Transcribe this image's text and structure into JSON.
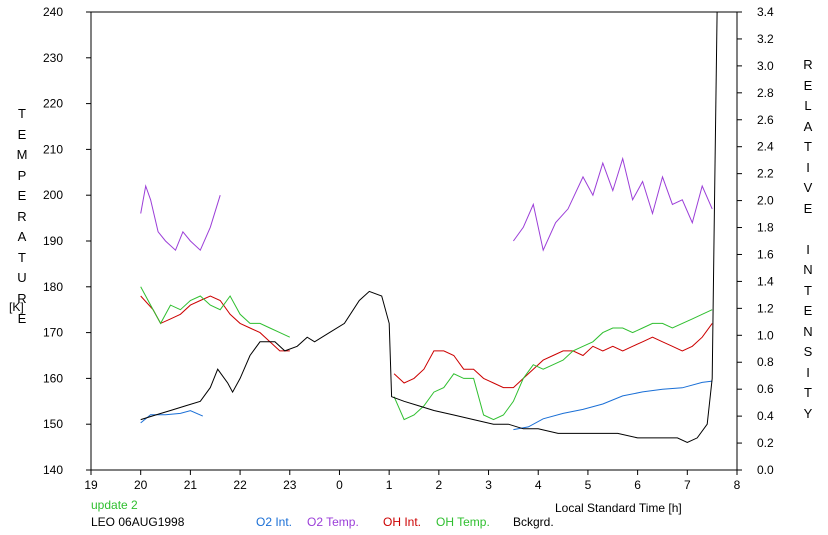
{
  "chart_data": {
    "type": "line",
    "station_label": "LEO 06AUG1998",
    "update_label": "update 2",
    "xlabel": "Local Standard Time [h]",
    "ylabel_left_letters": [
      "T",
      "E",
      "M",
      "P",
      "E",
      "R",
      "A",
      "T",
      "U",
      "R",
      "E"
    ],
    "ylabel_left_unit": "[K]",
    "ylabel_right_letters": [
      "R",
      "E",
      "L",
      "A",
      "T",
      "I",
      "V",
      "E",
      "",
      "I",
      "N",
      "T",
      "E",
      "N",
      "S",
      "I",
      "T",
      "Y"
    ],
    "x_ticks": [
      19,
      20,
      21,
      22,
      23,
      0,
      1,
      2,
      3,
      4,
      5,
      6,
      7,
      8
    ],
    "xlim": [
      19,
      32
    ],
    "ylim_left": [
      140,
      240
    ],
    "ylim_right": [
      0.0,
      3.4
    ],
    "y_ticks_left": [
      140,
      150,
      160,
      170,
      180,
      190,
      200,
      210,
      220,
      230,
      240
    ],
    "y_ticks_right": [
      "0.0",
      "0.2",
      "0.4",
      "0.6",
      "0.8",
      "1.0",
      "1.2",
      "1.4",
      "1.6",
      "1.8",
      "2.0",
      "2.2",
      "2.4",
      "2.6",
      "2.8",
      "3.0",
      "3.2",
      "3.4"
    ],
    "series": [
      {
        "name": "O2 Int.",
        "axis": "right",
        "color": "#1a6fd6",
        "segments": [
          [
            [
              20.0,
              0.35
            ],
            [
              20.2,
              0.41
            ],
            [
              20.5,
              0.41
            ],
            [
              20.8,
              0.42
            ],
            [
              21.0,
              0.44
            ],
            [
              21.25,
              0.4
            ]
          ],
          [
            [
              27.5,
              0.3
            ],
            [
              27.8,
              0.32
            ],
            [
              28.1,
              0.38
            ],
            [
              28.5,
              0.42
            ],
            [
              28.9,
              0.45
            ],
            [
              29.3,
              0.49
            ],
            [
              29.7,
              0.55
            ],
            [
              30.1,
              0.58
            ],
            [
              30.5,
              0.6
            ],
            [
              30.9,
              0.61
            ],
            [
              31.3,
              0.65
            ],
            [
              31.5,
              0.66
            ]
          ]
        ]
      },
      {
        "name": "O2 Temp.",
        "axis": "left",
        "color": "#9b3ed8",
        "segments": [
          [
            [
              20.0,
              196
            ],
            [
              20.1,
              202
            ],
            [
              20.2,
              199
            ],
            [
              20.35,
              192
            ],
            [
              20.5,
              190
            ],
            [
              20.7,
              188
            ],
            [
              20.85,
              192
            ],
            [
              21.0,
              190
            ],
            [
              21.2,
              188
            ],
            [
              21.4,
              193
            ],
            [
              21.6,
              200
            ]
          ],
          [
            [
              27.5,
              190
            ],
            [
              27.7,
              193
            ],
            [
              27.9,
              198
            ],
            [
              28.1,
              188
            ],
            [
              28.35,
              194
            ],
            [
              28.6,
              197
            ],
            [
              28.9,
              204
            ],
            [
              29.1,
              200
            ],
            [
              29.3,
              207
            ],
            [
              29.5,
              201
            ],
            [
              29.7,
              208
            ],
            [
              29.9,
              199
            ],
            [
              30.1,
              203
            ],
            [
              30.3,
              196
            ],
            [
              30.5,
              204
            ],
            [
              30.7,
              198
            ],
            [
              30.9,
              199
            ],
            [
              31.1,
              194
            ],
            [
              31.3,
              202
            ],
            [
              31.5,
              197
            ]
          ]
        ]
      },
      {
        "name": "OH Int.",
        "axis": "left",
        "color": "#cc0000",
        "segments": [
          [
            [
              20.0,
              178
            ],
            [
              20.25,
              175
            ],
            [
              20.4,
              172
            ],
            [
              20.6,
              173
            ],
            [
              20.8,
              174
            ],
            [
              21.0,
              176
            ],
            [
              21.2,
              177
            ],
            [
              21.4,
              178
            ],
            [
              21.6,
              177
            ],
            [
              21.8,
              174
            ],
            [
              22.0,
              172
            ],
            [
              22.2,
              171
            ],
            [
              22.4,
              170
            ],
            [
              22.6,
              168
            ],
            [
              22.8,
              166
            ],
            [
              23.0,
              166
            ]
          ],
          [
            [
              25.1,
              161
            ],
            [
              25.3,
              159
            ],
            [
              25.5,
              160
            ],
            [
              25.7,
              162
            ],
            [
              25.9,
              166
            ],
            [
              26.1,
              166
            ],
            [
              26.3,
              165
            ],
            [
              26.5,
              162
            ],
            [
              26.7,
              162
            ],
            [
              26.9,
              160
            ],
            [
              27.1,
              159
            ],
            [
              27.3,
              158
            ],
            [
              27.5,
              158
            ],
            [
              27.7,
              160
            ],
            [
              27.9,
              162
            ],
            [
              28.1,
              164
            ],
            [
              28.3,
              165
            ],
            [
              28.5,
              166
            ],
            [
              28.7,
              166
            ],
            [
              28.9,
              165
            ],
            [
              29.1,
              167
            ],
            [
              29.3,
              166
            ],
            [
              29.5,
              167
            ],
            [
              29.7,
              166
            ],
            [
              29.9,
              167
            ],
            [
              30.1,
              168
            ],
            [
              30.3,
              169
            ],
            [
              30.5,
              168
            ],
            [
              30.7,
              167
            ],
            [
              30.9,
              166
            ],
            [
              31.1,
              167
            ],
            [
              31.3,
              169
            ],
            [
              31.5,
              172
            ]
          ]
        ]
      },
      {
        "name": "OH Temp.",
        "axis": "left",
        "color": "#2fbf2f",
        "segments": [
          [
            [
              20.0,
              180
            ],
            [
              20.2,
              176
            ],
            [
              20.4,
              172
            ],
            [
              20.6,
              176
            ],
            [
              20.8,
              175
            ],
            [
              21.0,
              177
            ],
            [
              21.2,
              178
            ],
            [
              21.4,
              176
            ],
            [
              21.6,
              175
            ],
            [
              21.8,
              178
            ],
            [
              22.0,
              174
            ],
            [
              22.2,
              172
            ],
            [
              22.4,
              172
            ],
            [
              22.6,
              171
            ],
            [
              22.8,
              170
            ],
            [
              23.0,
              169
            ]
          ],
          [
            [
              25.1,
              156
            ],
            [
              25.3,
              151
            ],
            [
              25.5,
              152
            ],
            [
              25.7,
              154
            ],
            [
              25.9,
              157
            ],
            [
              26.1,
              158
            ],
            [
              26.3,
              161
            ],
            [
              26.5,
              160
            ],
            [
              26.7,
              160
            ],
            [
              26.9,
              152
            ],
            [
              27.1,
              151
            ],
            [
              27.3,
              152
            ],
            [
              27.5,
              155
            ],
            [
              27.7,
              160
            ],
            [
              27.9,
              163
            ],
            [
              28.1,
              162
            ],
            [
              28.3,
              163
            ],
            [
              28.5,
              164
            ],
            [
              28.7,
              166
            ],
            [
              28.9,
              167
            ],
            [
              29.1,
              168
            ],
            [
              29.3,
              170
            ],
            [
              29.5,
              171
            ],
            [
              29.7,
              171
            ],
            [
              29.9,
              170
            ],
            [
              30.1,
              171
            ],
            [
              30.3,
              172
            ],
            [
              30.5,
              172
            ],
            [
              30.7,
              171
            ],
            [
              30.9,
              172
            ],
            [
              31.1,
              173
            ],
            [
              31.3,
              174
            ],
            [
              31.5,
              175
            ]
          ]
        ]
      },
      {
        "name": "Bckgrd.",
        "axis": "left",
        "color": "#000000",
        "segments": [
          [
            [
              20.0,
              151
            ],
            [
              20.3,
              152
            ],
            [
              20.6,
              153
            ],
            [
              20.9,
              154
            ],
            [
              21.2,
              155
            ],
            [
              21.4,
              158
            ],
            [
              21.55,
              162
            ],
            [
              21.75,
              159
            ],
            [
              21.85,
              157
            ],
            [
              22.0,
              160
            ],
            [
              22.2,
              165
            ],
            [
              22.4,
              168
            ],
            [
              22.7,
              168
            ],
            [
              22.9,
              166
            ],
            [
              23.15,
              167
            ],
            [
              23.35,
              169
            ],
            [
              23.5,
              168
            ],
            [
              23.8,
              170
            ],
            [
              24.1,
              172
            ],
            [
              24.4,
              177
            ],
            [
              24.6,
              179
            ],
            [
              24.85,
              178
            ],
            [
              25.0,
              172
            ],
            [
              25.05,
              156
            ],
            [
              25.3,
              155
            ],
            [
              25.6,
              154
            ],
            [
              25.9,
              153
            ],
            [
              26.3,
              152
            ],
            [
              26.7,
              151
            ],
            [
              27.1,
              150
            ],
            [
              27.4,
              150
            ],
            [
              27.7,
              149
            ],
            [
              28.0,
              149
            ],
            [
              28.4,
              148
            ],
            [
              28.8,
              148
            ],
            [
              29.2,
              148
            ],
            [
              29.6,
              148
            ],
            [
              30.0,
              147
            ],
            [
              30.4,
              147
            ],
            [
              30.8,
              147
            ],
            [
              31.0,
              146
            ],
            [
              31.2,
              147
            ],
            [
              31.4,
              150
            ],
            [
              31.5,
              160
            ],
            [
              31.55,
              200
            ],
            [
              31.6,
              240
            ]
          ]
        ]
      }
    ]
  }
}
